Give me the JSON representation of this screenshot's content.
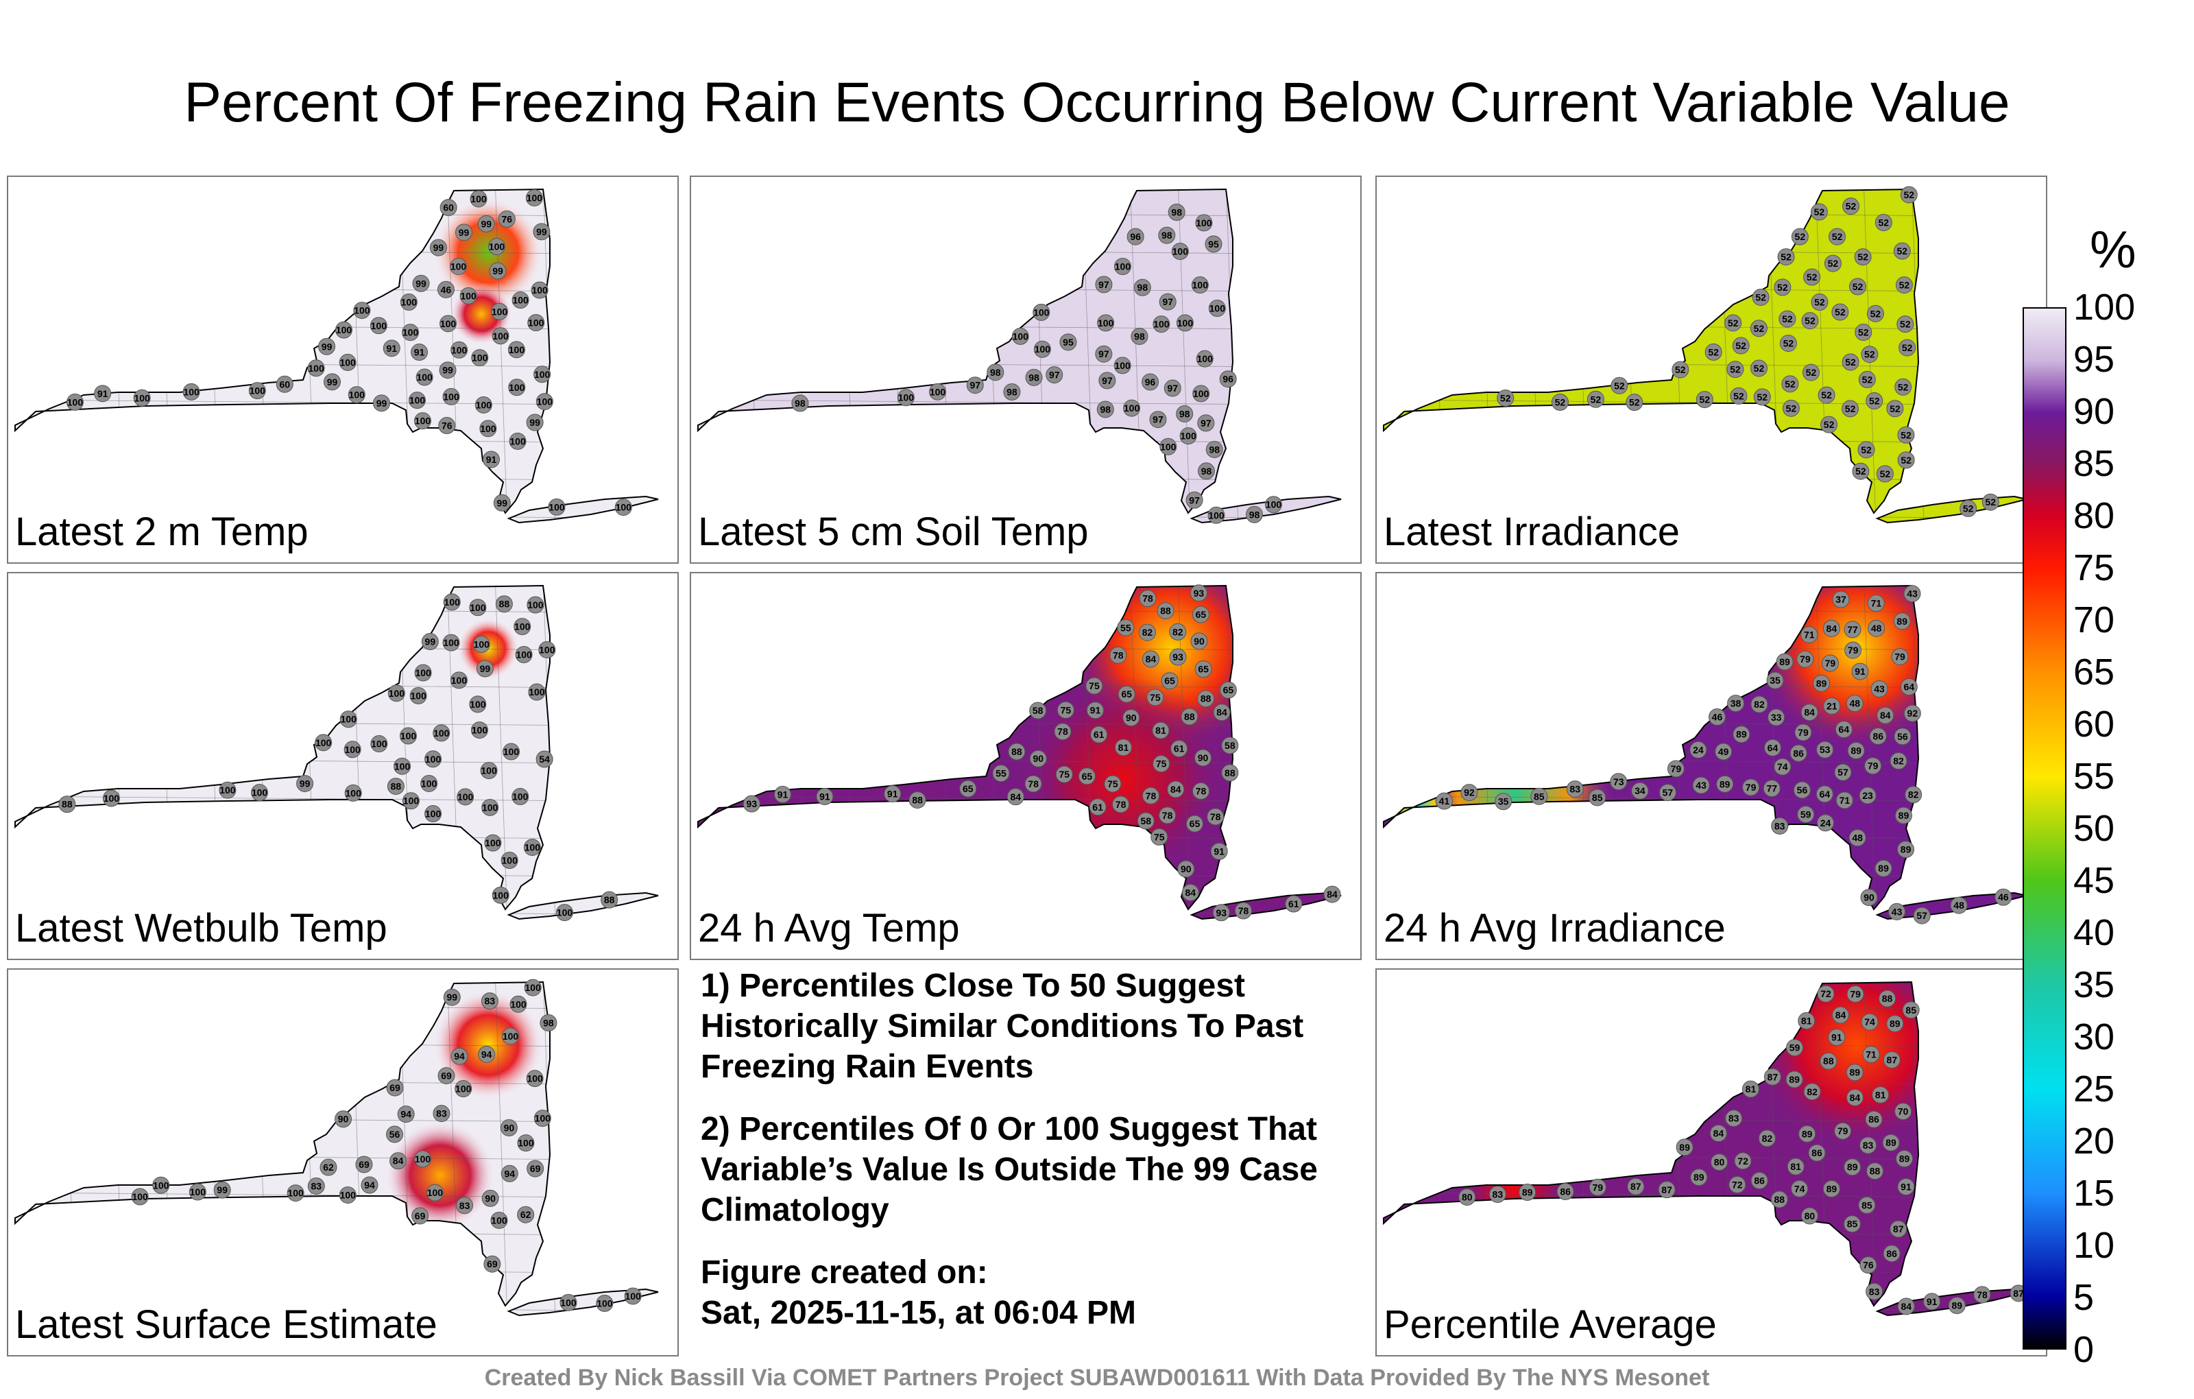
{
  "title": "Percent Of Freezing Rain Events Occurring Below Current Variable Value",
  "footer": "Created By Nick Bassill Via COMET Partners Project SUBAWD001611 With Data Provided By The NYS Mesonet",
  "notes": {
    "note1": "1) Percentiles Close To 50 Suggest Historically Similar Conditions To Past Freezing Rain Events",
    "note2": "2) Percentiles Of 0 Or 100 Suggest That Variable’s Value Is Outside The 99 Case Climatology",
    "created_label": "Figure created on:",
    "created_date": "Sat, 2025-11-15, at 06:04 PM"
  },
  "colors": {
    "c100": "#f0ecf4",
    "c95": "#cdb6de",
    "c90": "#6d1c9a",
    "c85": "#8a1760",
    "c80": "#d60022",
    "c75": "#ff1a00",
    "c65": "#ff9100",
    "c55": "#ffe800",
    "c45": "#4fc619",
    "c35": "#1fc7a4",
    "c25": "#00e0f0",
    "c15": "#1e90ff",
    "c5": "#0000a0",
    "c0": "#000000",
    "station": "#8c8c8c"
  },
  "chart_data": {
    "type": "heatmap",
    "colorbar": {
      "unit": "%",
      "range": [
        0,
        100
      ],
      "ticks": [
        "0",
        "5",
        "10",
        "15",
        "20",
        "25",
        "30",
        "35",
        "40",
        "45",
        "50",
        "55",
        "60",
        "65",
        "70",
        "75",
        "80",
        "85",
        "90",
        "95",
        "100"
      ]
    },
    "panels": [
      {
        "id": "2m-temp",
        "label": "Latest 2 m Temp",
        "background": 100,
        "hotspots": [
          {
            "value": 46,
            "size": "medium",
            "location": "north"
          },
          {
            "value": 60,
            "size": "small",
            "location": "north-central"
          }
        ],
        "stations": [
          "91",
          "99",
          "100",
          "99",
          "99",
          "91",
          "100",
          "100",
          "99",
          "76",
          "46",
          "60",
          "100",
          "100",
          "99",
          "99",
          "76",
          "91",
          "100",
          "100",
          "99",
          "99",
          "60",
          "91",
          "100",
          "100",
          "100",
          "100",
          "100",
          "99",
          "100",
          "100",
          "100",
          "100",
          "100",
          "99",
          "99",
          "100",
          "100",
          "100",
          "100",
          "100",
          "100",
          "100",
          "100",
          "100",
          "100",
          "99",
          "100",
          "100",
          "100",
          "100",
          "100",
          "100",
          "100",
          "100",
          "100",
          "100",
          "100"
        ]
      },
      {
        "id": "5cm-soil",
        "label": "Latest 5 cm Soil Temp",
        "background": 98,
        "hotspots": [],
        "stations": [
          "98",
          "97",
          "96",
          "98",
          "98",
          "97",
          "97",
          "98",
          "97",
          "97",
          "100",
          "97",
          "98",
          "95",
          "97",
          "98",
          "97",
          "100",
          "100",
          "96",
          "100",
          "100",
          "98",
          "100",
          "98",
          "98",
          "95",
          "98",
          "100",
          "98",
          "100",
          "100",
          "98",
          "100",
          "96",
          "97",
          "100",
          "98",
          "100",
          "100",
          "97",
          "100",
          "100",
          "100",
          "100",
          "100",
          "100",
          "100",
          "100"
        ]
      },
      {
        "id": "irradiance",
        "label": "Latest Irradiance",
        "background": 52,
        "hotspots": [],
        "stations": [
          "52",
          "52",
          "52",
          "52",
          "52",
          "52",
          "52",
          "52",
          "52",
          "52",
          "52",
          "52",
          "52",
          "52",
          "52",
          "52",
          "52",
          "52",
          "52",
          "52",
          "52",
          "52",
          "52",
          "52",
          "52",
          "52",
          "52",
          "52",
          "52",
          "52",
          "52",
          "52",
          "52",
          "52",
          "52",
          "52",
          "52",
          "52",
          "52",
          "52",
          "52",
          "52",
          "52",
          "52",
          "52",
          "52",
          "52",
          "52",
          "52",
          "52",
          "52",
          "52",
          "52",
          "52",
          "52",
          "52",
          "52",
          "52"
        ]
      },
      {
        "id": "wetbulb",
        "label": "Latest Wetbulb Temp",
        "background": 100,
        "hotspots": [
          {
            "value": 54,
            "size": "small",
            "location": "north"
          }
        ],
        "stations": [
          "100",
          "100",
          "100",
          "99",
          "100",
          "88",
          "54",
          "88",
          "100",
          "100",
          "88",
          "88",
          "100",
          "100",
          "100",
          "99",
          "100",
          "100",
          "100",
          "100",
          "100",
          "100",
          "100",
          "99",
          "100",
          "100",
          "100",
          "100",
          "100",
          "100",
          "100",
          "100",
          "100",
          "100",
          "100",
          "100",
          "100",
          "100",
          "100",
          "100",
          "100",
          "100",
          "100",
          "100",
          "100",
          "100",
          "100",
          "100"
        ]
      },
      {
        "id": "24h-temp",
        "label": "24 h Avg Temp",
        "background": 88,
        "hotspots": [
          {
            "value": 58,
            "size": "large",
            "location": "north"
          },
          {
            "value": 78,
            "size": "large",
            "location": "central"
          }
        ],
        "stations": [
          "58",
          "65",
          "82",
          "65",
          "55",
          "61",
          "65",
          "58",
          "55",
          "75",
          "78",
          "78",
          "58",
          "65",
          "75",
          "61",
          "78",
          "78",
          "88",
          "61",
          "75",
          "81",
          "61",
          "65",
          "75",
          "78",
          "90",
          "91",
          "90",
          "88",
          "84",
          "81",
          "75",
          "75",
          "65",
          "75",
          "93",
          "91",
          "88",
          "91",
          "84",
          "78",
          "78",
          "78",
          "65",
          "90",
          "90",
          "88",
          "84",
          "84",
          "78",
          "78",
          "65",
          "91",
          "88",
          "88",
          "84",
          "82",
          "84",
          "90",
          "91",
          "93",
          "93",
          "93"
        ]
      },
      {
        "id": "24h-irr",
        "label": "24 h Avg Irradiance",
        "background": 89,
        "hotspots": [
          {
            "value": 57,
            "size": "large",
            "location": "north"
          },
          {
            "value": 37,
            "size": "large",
            "location": "west"
          },
          {
            "value": 24,
            "size": "small",
            "location": "far-west"
          }
        ],
        "stations": [
          "71",
          "82",
          "84",
          "71",
          "89",
          "57",
          "64",
          "56",
          "89",
          "48",
          "48",
          "35",
          "48",
          "79",
          "79",
          "43",
          "64",
          "53",
          "57",
          "89",
          "21",
          "34",
          "37",
          "46",
          "59",
          "57",
          "79",
          "86",
          "89",
          "33",
          "41",
          "43",
          "49",
          "73",
          "71",
          "79",
          "85",
          "89",
          "89",
          "35",
          "48",
          "64",
          "79",
          "83",
          "85",
          "77",
          "84",
          "24",
          "23",
          "43",
          "38",
          "56",
          "79",
          "79",
          "82",
          "86",
          "89",
          "89",
          "46",
          "24",
          "43",
          "64",
          "74",
          "79",
          "83",
          "82",
          "84",
          "90",
          "77",
          "89",
          "91",
          "92",
          "92"
        ]
      },
      {
        "id": "surface",
        "label": "Latest Surface Estimate",
        "background": 100,
        "hotspots": [
          {
            "value": 56,
            "size": "medium",
            "location": "north"
          },
          {
            "value": 62,
            "size": "medium",
            "location": "central"
          }
        ],
        "stations": [
          "90",
          "83",
          "99",
          "94",
          "69",
          "56",
          "62",
          "83",
          "99",
          "94",
          "69",
          "69",
          "69",
          "69",
          "83",
          "100",
          "94",
          "83",
          "62",
          "90",
          "100",
          "100",
          "98",
          "94",
          "84",
          "69",
          "100",
          "100",
          "100",
          "100",
          "90",
          "94",
          "100",
          "100",
          "100",
          "100",
          "100",
          "100",
          "100",
          "100",
          "100",
          "100",
          "100"
        ]
      },
      {
        "id": "average",
        "label": "Percentile Average",
        "background": 88,
        "hotspots": [
          {
            "value": 71,
            "size": "large",
            "location": "north"
          },
          {
            "value": 78,
            "size": "medium",
            "location": "west"
          }
        ],
        "stations": [
          "80",
          "91",
          "84",
          "82",
          "79",
          "80",
          "72",
          "59",
          "72",
          "81",
          "79",
          "74",
          "70",
          "74",
          "81",
          "89",
          "85",
          "83",
          "71",
          "76",
          "72",
          "87",
          "88",
          "80",
          "82",
          "83",
          "84",
          "86",
          "85",
          "86",
          "87",
          "87",
          "88",
          "88",
          "83",
          "85",
          "86",
          "87",
          "87",
          "88",
          "89",
          "89",
          "78",
          "81",
          "84",
          "79",
          "86",
          "89",
          "89",
          "87",
          "86",
          "89",
          "89",
          "84",
          "81",
          "83",
          "89",
          "89",
          "89",
          "89",
          "89",
          "91",
          "91"
        ]
      }
    ]
  }
}
